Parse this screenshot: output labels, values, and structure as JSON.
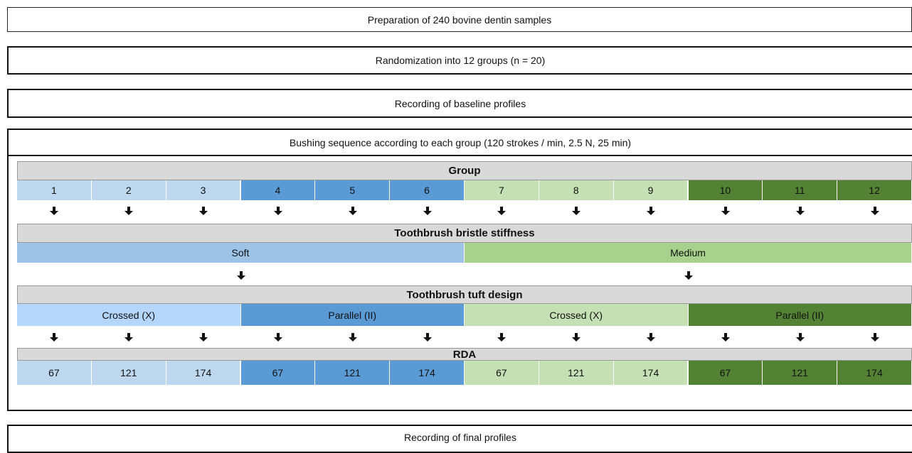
{
  "steps": [
    "Preparation of 240 bovine dentin samples",
    "Randomization into 12 groups (n = 20)",
    "Recording of baseline profiles",
    "Bushing sequence according to each group (120 strokes / min, 2.5 N, 25 min)"
  ],
  "table": {
    "group_header": "Group",
    "groups": [
      1,
      2,
      3,
      4,
      5,
      6,
      7,
      8,
      9,
      10,
      11,
      12
    ],
    "stiffness_header": "Toothbrush bristle stiffness",
    "stiffness": [
      "Soft",
      "Medium"
    ],
    "tuft_header": "Toothbrush tuft design",
    "tuft": [
      "Crossed (X)",
      "Parallel (II)",
      "Crossed (X)",
      "Parallel (II)"
    ],
    "rda_header": "RDA",
    "rda": [
      67,
      121,
      174,
      67,
      121,
      174,
      67,
      121,
      174,
      67,
      121,
      174
    ]
  },
  "final_step": "Recording of final profiles"
}
